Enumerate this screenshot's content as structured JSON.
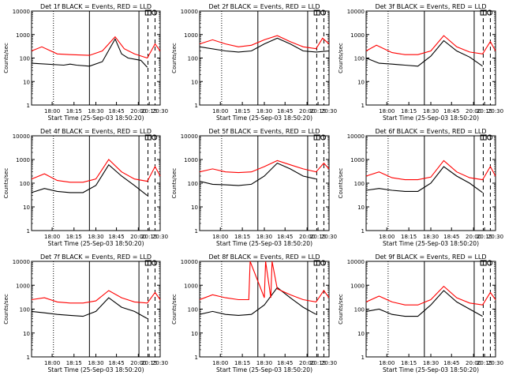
{
  "chart_data": [
    {
      "type": "line",
      "title": "Det 1f BLACK = Events, RED = LLD",
      "xlabel": "Start Time (25-Sep-03 18:50:20)",
      "ylabel": "Counts/sec",
      "yscale": "log",
      "ylim": [
        1,
        10000
      ],
      "xticks": [
        "18:00",
        "18:15",
        "18:30",
        "18:45",
        "20:00",
        "20:15",
        "20:30"
      ],
      "yticks": [
        "1",
        "10",
        "100",
        "1000",
        "10000"
      ],
      "series": [
        {
          "color": "#000000",
          "x": [
            0,
            0.25,
            0.3,
            0.35,
            0.45,
            0.55,
            0.65,
            0.7,
            0.75,
            0.8,
            0.85,
            0.9
          ],
          "values": [
            60,
            50,
            55,
            50,
            45,
            70,
            650,
            150,
            100,
            90,
            80,
            40
          ]
        },
        {
          "color": "#ff0000",
          "x": [
            0,
            0.08,
            0.2,
            0.3,
            0.45,
            0.55,
            0.65,
            0.72,
            0.8,
            0.9,
            0.96,
            1.0
          ],
          "values": [
            200,
            300,
            150,
            140,
            130,
            200,
            800,
            250,
            150,
            100,
            400,
            200
          ]
        }
      ]
    },
    {
      "type": "line",
      "title": "Det 2f BLACK = Events, RED = LLD",
      "xlabel": "Start Time (25-Sep-03 18:50:20)",
      "ylabel": "Counts/sec",
      "yscale": "log",
      "ylim": [
        1,
        10000
      ],
      "xticks": [
        "18:00",
        "18:15",
        "18:30",
        "18:45",
        "20:00",
        "20:15",
        "20:30"
      ],
      "yticks": [
        "1",
        "10",
        "100",
        "1000",
        "10000"
      ],
      "series": [
        {
          "color": "#000000",
          "x": [
            0,
            0.2,
            0.3,
            0.4,
            0.5,
            0.6,
            0.7,
            0.8,
            0.9,
            1.0
          ],
          "values": [
            300,
            200,
            180,
            200,
            400,
            700,
            400,
            200,
            180,
            200
          ]
        },
        {
          "color": "#ff0000",
          "x": [
            0,
            0.1,
            0.2,
            0.3,
            0.4,
            0.5,
            0.6,
            0.7,
            0.8,
            0.9,
            0.95,
            1.0
          ],
          "values": [
            400,
            600,
            400,
            300,
            350,
            600,
            900,
            500,
            300,
            250,
            700,
            400
          ]
        }
      ]
    },
    {
      "type": "line",
      "title": "Det 3f BLACK = Events, RED = LLD",
      "xlabel": "Start Time (25-Sep-03 18:50:20)",
      "ylabel": "Counts/sec",
      "yscale": "log",
      "ylim": [
        1,
        10000
      ],
      "xticks": [
        "18:00",
        "18:15",
        "18:30",
        "18:45",
        "20:00",
        "20:15",
        "20:30"
      ],
      "yticks": [
        "1",
        "10",
        "100",
        "1000",
        "10000"
      ],
      "series": [
        {
          "color": "#000000",
          "x": [
            0,
            0.1,
            0.2,
            0.3,
            0.4,
            0.5,
            0.6,
            0.7,
            0.8,
            0.9
          ],
          "values": [
            100,
            60,
            55,
            50,
            45,
            120,
            550,
            200,
            110,
            45
          ]
        },
        {
          "color": "#ff0000",
          "x": [
            0,
            0.08,
            0.2,
            0.3,
            0.4,
            0.5,
            0.6,
            0.7,
            0.8,
            0.9,
            0.96,
            1.0
          ],
          "values": [
            200,
            350,
            170,
            140,
            140,
            200,
            900,
            300,
            180,
            150,
            500,
            200
          ]
        }
      ]
    },
    {
      "type": "line",
      "title": "Det 4f BLACK = Events, RED = LLD",
      "xlabel": "Start Time (25-Sep-03 18:50:20)",
      "ylabel": "Counts/sec",
      "yscale": "log",
      "ylim": [
        1,
        10000
      ],
      "xticks": [
        "18:00",
        "18:15",
        "18:30",
        "18:45",
        "20:00",
        "20:15",
        "20:30"
      ],
      "yticks": [
        "1",
        "10",
        "100",
        "1000",
        "10000"
      ],
      "series": [
        {
          "color": "#000000",
          "x": [
            0,
            0.1,
            0.2,
            0.3,
            0.4,
            0.5,
            0.6,
            0.7,
            0.8,
            0.9
          ],
          "values": [
            40,
            60,
            45,
            40,
            40,
            80,
            600,
            200,
            80,
            30
          ]
        },
        {
          "color": "#ff0000",
          "x": [
            0,
            0.1,
            0.2,
            0.3,
            0.4,
            0.5,
            0.6,
            0.7,
            0.8,
            0.9,
            0.96,
            1.0
          ],
          "values": [
            150,
            250,
            130,
            110,
            110,
            150,
            1000,
            300,
            150,
            120,
            500,
            200
          ]
        }
      ]
    },
    {
      "type": "line",
      "title": "Det 5f BLACK = Events, RED = LLD",
      "xlabel": "Start Time (25-Sep-03 18:50:20)",
      "ylabel": "Counts/sec",
      "yscale": "log",
      "ylim": [
        1,
        10000
      ],
      "xticks": [
        "18:00",
        "18:15",
        "18:30",
        "18:45",
        "20:00",
        "20:15",
        "20:30"
      ],
      "yticks": [
        "1",
        "10",
        "100",
        "1000",
        "10000"
      ],
      "series": [
        {
          "color": "#000000",
          "x": [
            0,
            0.1,
            0.2,
            0.3,
            0.4,
            0.5,
            0.6,
            0.7,
            0.8,
            0.9
          ],
          "values": [
            120,
            90,
            85,
            80,
            90,
            200,
            700,
            400,
            200,
            150
          ]
        },
        {
          "color": "#ff0000",
          "x": [
            0,
            0.1,
            0.2,
            0.3,
            0.4,
            0.5,
            0.6,
            0.7,
            0.8,
            0.9,
            0.96,
            1.0
          ],
          "values": [
            300,
            400,
            300,
            280,
            300,
            500,
            900,
            600,
            400,
            300,
            700,
            400
          ]
        }
      ]
    },
    {
      "type": "line",
      "title": "Det 6f BLACK = Events, RED = LLD",
      "xlabel": "Start Time (25-Sep-03 18:50:20)",
      "ylabel": "Counts/sec",
      "yscale": "log",
      "ylim": [
        1,
        10000
      ],
      "xticks": [
        "18:00",
        "18:15",
        "18:30",
        "18:45",
        "20:00",
        "20:15",
        "20:30"
      ],
      "yticks": [
        "1",
        "10",
        "100",
        "1000",
        "10000"
      ],
      "series": [
        {
          "color": "#000000",
          "x": [
            0,
            0.1,
            0.2,
            0.3,
            0.4,
            0.5,
            0.6,
            0.7,
            0.8,
            0.9
          ],
          "values": [
            50,
            60,
            50,
            45,
            45,
            100,
            500,
            200,
            100,
            40
          ]
        },
        {
          "color": "#ff0000",
          "x": [
            0,
            0.1,
            0.2,
            0.3,
            0.4,
            0.5,
            0.6,
            0.7,
            0.8,
            0.9,
            0.96,
            1.0
          ],
          "values": [
            200,
            300,
            170,
            140,
            140,
            180,
            900,
            300,
            170,
            140,
            500,
            200
          ]
        }
      ]
    },
    {
      "type": "line",
      "title": "Det 7f BLACK = Events, RED = LLD",
      "xlabel": "Start Time (25-Sep-03 18:50:20)",
      "ylabel": "Counts/sec",
      "yscale": "log",
      "ylim": [
        1,
        10000
      ],
      "xticks": [
        "18:00",
        "18:15",
        "18:30",
        "18:45",
        "20:00",
        "20:15",
        "20:30"
      ],
      "yticks": [
        "1",
        "10",
        "100",
        "1000",
        "10000"
      ],
      "series": [
        {
          "color": "#000000",
          "x": [
            0,
            0.1,
            0.2,
            0.3,
            0.4,
            0.5,
            0.6,
            0.7,
            0.8,
            0.9
          ],
          "values": [
            80,
            70,
            60,
            55,
            50,
            80,
            300,
            120,
            80,
            40
          ]
        },
        {
          "color": "#ff0000",
          "x": [
            0,
            0.1,
            0.2,
            0.3,
            0.4,
            0.5,
            0.6,
            0.7,
            0.8,
            0.9,
            0.96,
            1.0
          ],
          "values": [
            250,
            300,
            200,
            180,
            180,
            220,
            600,
            300,
            200,
            180,
            500,
            250
          ]
        }
      ]
    },
    {
      "type": "line",
      "title": "Det 8f BLACK = Events, RED = LLD",
      "xlabel": "Start Time (25-Sep-03 18:50:20)",
      "ylabel": "Counts/sec",
      "yscale": "log",
      "ylim": [
        1,
        10000
      ],
      "xticks": [
        "18:00",
        "18:15",
        "18:30",
        "18:45",
        "20:00",
        "20:15",
        "20:30"
      ],
      "yticks": [
        "1",
        "10",
        "100",
        "1000",
        "10000"
      ],
      "series": [
        {
          "color": "#000000",
          "x": [
            0,
            0.1,
            0.2,
            0.3,
            0.4,
            0.5,
            0.6,
            0.7,
            0.8,
            0.9
          ],
          "values": [
            60,
            80,
            60,
            55,
            60,
            150,
            800,
            300,
            120,
            60
          ]
        },
        {
          "color": "#ff0000",
          "x": [
            0,
            0.1,
            0.2,
            0.3,
            0.38,
            0.39,
            0.5,
            0.51,
            0.55,
            0.56,
            0.6,
            0.7,
            0.8,
            0.9,
            0.96,
            1.0
          ],
          "values": [
            250,
            400,
            300,
            250,
            250,
            10000,
            300,
            10000,
            300,
            10000,
            700,
            400,
            250,
            200,
            600,
            300
          ]
        }
      ]
    },
    {
      "type": "line",
      "title": "Det 9f BLACK = Events, RED = LLD",
      "xlabel": "Start Time (25-Sep-03 18:50:20)",
      "ylabel": "Counts/sec",
      "yscale": "log",
      "ylim": [
        1,
        10000
      ],
      "xticks": [
        "18:00",
        "18:15",
        "18:30",
        "18:45",
        "20:00",
        "20:15",
        "20:30"
      ],
      "yticks": [
        "1",
        "10",
        "100",
        "1000",
        "10000"
      ],
      "series": [
        {
          "color": "#000000",
          "x": [
            0,
            0.1,
            0.2,
            0.3,
            0.4,
            0.5,
            0.6,
            0.7,
            0.8,
            0.9
          ],
          "values": [
            80,
            100,
            60,
            50,
            50,
            150,
            600,
            200,
            100,
            50
          ]
        },
        {
          "color": "#ff0000",
          "x": [
            0,
            0.1,
            0.2,
            0.3,
            0.4,
            0.5,
            0.6,
            0.7,
            0.8,
            0.9,
            0.96,
            1.0
          ],
          "values": [
            200,
            350,
            200,
            150,
            150,
            250,
            900,
            300,
            180,
            150,
            500,
            250
          ]
        }
      ]
    }
  ]
}
